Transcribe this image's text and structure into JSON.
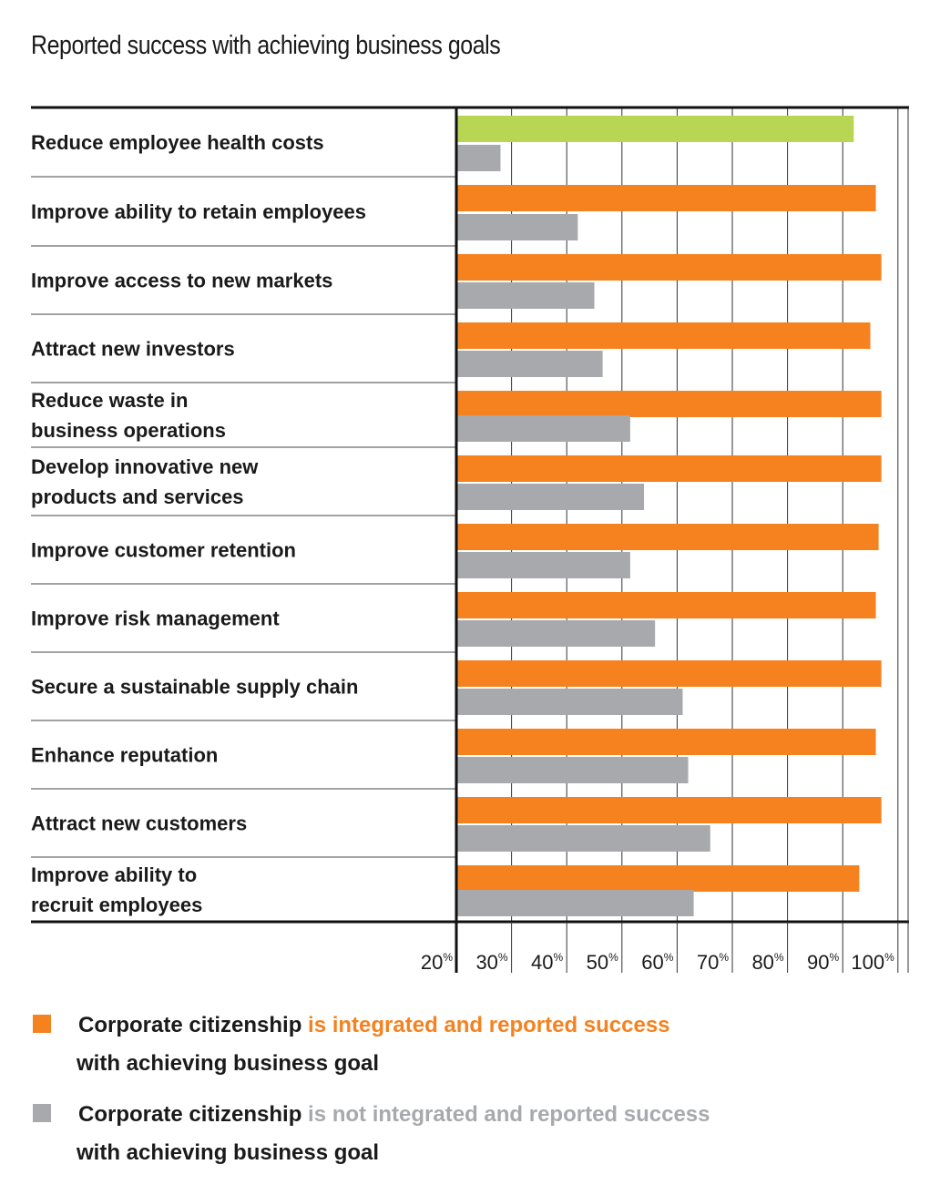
{
  "chart_data": {
    "type": "bar",
    "orientation": "horizontal",
    "title": "Reported success with achieving business goals",
    "categories": [
      [
        "Reduce employee health costs"
      ],
      [
        "Improve ability to retain employees"
      ],
      [
        "Improve access to new markets"
      ],
      [
        "Attract new investors"
      ],
      [
        "Reduce waste in",
        "business operations"
      ],
      [
        "Develop innovative new",
        "products and services"
      ],
      [
        "Improve customer retention"
      ],
      [
        "Improve risk management"
      ],
      [
        "Secure a sustainable supply chain"
      ],
      [
        "Enhance reputation"
      ],
      [
        "Attract new customers"
      ],
      [
        "Improve ability to",
        "recruit employees"
      ]
    ],
    "series": [
      {
        "name": "integrated",
        "values": [
          92,
          96,
          97,
          95,
          97,
          97,
          96.5,
          96,
          97,
          96,
          97,
          93
        ],
        "first_bar_color": "#b8d654",
        "color": "#f5821f"
      },
      {
        "name": "not integrated",
        "values": [
          28,
          42,
          45,
          46.5,
          51.5,
          54,
          51.5,
          56,
          61,
          62,
          66,
          63
        ],
        "color": "#a7a9ac"
      }
    ],
    "xlim": [
      20,
      100
    ],
    "ticks": [
      "20",
      "30",
      "40",
      "50",
      "60",
      "70",
      "80",
      "90",
      "100"
    ],
    "tick_values": [
      20,
      30,
      40,
      50,
      60,
      70,
      80,
      90,
      100
    ],
    "tick_unit": "%",
    "grid": true
  },
  "legend": [
    {
      "color": "#f5821f",
      "prefix": "Corporate citizenship",
      "highlight": "is integrated and reported success",
      "highlight_color": "#f5821f",
      "line2": "with achieving business goal"
    },
    {
      "color": "#a7a9ac",
      "prefix": "Corporate citizenship",
      "highlight": "is not integrated and reported success",
      "highlight_color": "#a7a9ac",
      "line2": "with achieving business goal"
    }
  ]
}
